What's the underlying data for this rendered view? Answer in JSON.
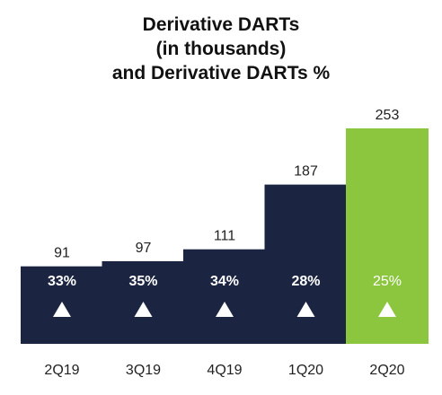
{
  "title_lines": [
    "Derivative DARTs",
    "(in thousands)",
    "and Derivative DARTs %"
  ],
  "chart_data": {
    "type": "bar",
    "title": "Derivative DARTs (in thousands) and Derivative DARTs %",
    "categories": [
      "2Q19",
      "3Q19",
      "4Q19",
      "1Q20",
      "2Q20"
    ],
    "values": [
      91,
      97,
      111,
      187,
      253
    ],
    "percent_labels": [
      "33%",
      "35%",
      "34%",
      "28%",
      "25%"
    ],
    "marker": "up-triangle",
    "colors": [
      "#1b2440",
      "#1b2440",
      "#1b2440",
      "#1b2440",
      "#8cc63f"
    ],
    "inner_label_colors": [
      "#ffffff",
      "#ffffff",
      "#ffffff",
      "#ffffff",
      "#ffffff"
    ],
    "inner_label_weights": [
      "bold",
      "bold",
      "bold",
      "bold",
      "normal"
    ],
    "xlabel": "",
    "ylabel": "",
    "grid": false,
    "legend": "none"
  }
}
